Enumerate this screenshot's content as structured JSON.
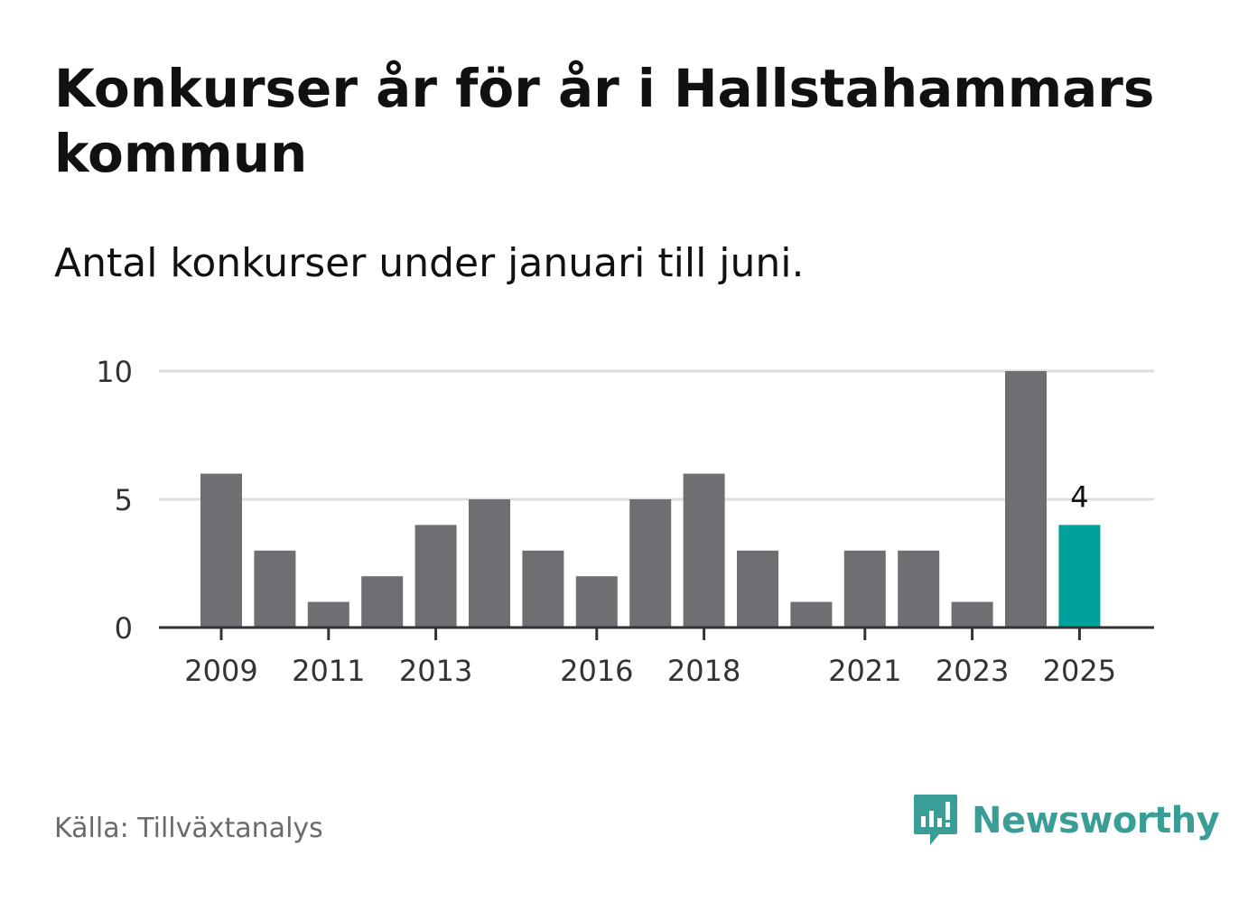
{
  "title": "Konkurser år för år i Hallstahammars kommun",
  "subtitle": "Antal konkurser under januari till juni.",
  "source": "Källa: Tillväxtanalys",
  "brand": {
    "name": "Newsworthy",
    "icon": "newsworthy-logo-icon",
    "color": "#3a9e96"
  },
  "colors": {
    "bar": "#6f6e73",
    "highlight": "#00a19a",
    "grid": "#dddddd",
    "axis": "#333333",
    "text": "#333333"
  },
  "chart_data": {
    "type": "bar",
    "title": "Konkurser år för år i Hallstahammars kommun",
    "subtitle": "Antal konkurser under januari till juni.",
    "xlabel": "",
    "ylabel": "",
    "categories": [
      "2009",
      "2010",
      "2011",
      "2012",
      "2013",
      "2014",
      "2015",
      "2016",
      "2017",
      "2018",
      "2019",
      "2020",
      "2021",
      "2022",
      "2023",
      "2024",
      "2025"
    ],
    "values": [
      6,
      3,
      1,
      2,
      4,
      5,
      3,
      2,
      5,
      6,
      3,
      1,
      3,
      3,
      1,
      10,
      4
    ],
    "xtick_labels": [
      "2009",
      "2011",
      "2013",
      "2016",
      "2018",
      "2021",
      "2023",
      "2025"
    ],
    "yticks": [
      0,
      5,
      10
    ],
    "ylim": [
      0,
      10
    ],
    "grid": true,
    "highlight": {
      "category": "2025",
      "label": "4"
    }
  }
}
